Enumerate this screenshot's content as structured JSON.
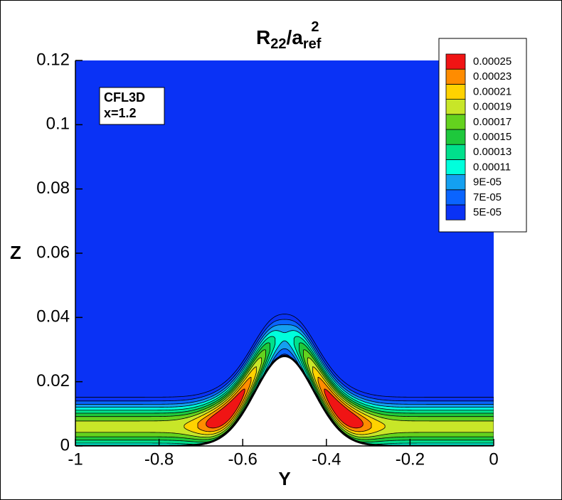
{
  "chart_data": {
    "type": "contour",
    "title_parts": [
      "R",
      "22",
      "/a",
      "ref",
      "2"
    ],
    "x_label": "Y",
    "y_label": "Z",
    "annotation": [
      "CFL3D",
      "x=1.2"
    ],
    "xlim": [
      -1,
      0
    ],
    "xticks": [
      -1,
      -0.8,
      -0.6,
      -0.4,
      -0.2,
      0
    ],
    "ylim": [
      0,
      0.12
    ],
    "yticks": [
      0,
      0.02,
      0.04,
      0.06,
      0.08,
      0.1,
      0.12
    ],
    "levels": [
      {
        "value": 5e-05,
        "label": "5E-05",
        "color": "#0a32f5"
      },
      {
        "value": 7e-05,
        "label": "7E-05",
        "color": "#0a64ff"
      },
      {
        "value": 9e-05,
        "label": "9E-05",
        "color": "#14a0f0"
      },
      {
        "value": 0.00011,
        "color": "#00ffdc"
      },
      {
        "value": 0.00013,
        "color": "#00e08c"
      },
      {
        "value": 0.00015,
        "color": "#1ec83c"
      },
      {
        "value": 0.00017,
        "color": "#64d21e"
      },
      {
        "value": 0.00019,
        "color": "#c8e628"
      },
      {
        "value": 0.00021,
        "color": "#ffd200"
      },
      {
        "value": 0.00023,
        "color": "#ff8c00"
      },
      {
        "value": 0.00025,
        "color": "#f01414"
      }
    ]
  }
}
